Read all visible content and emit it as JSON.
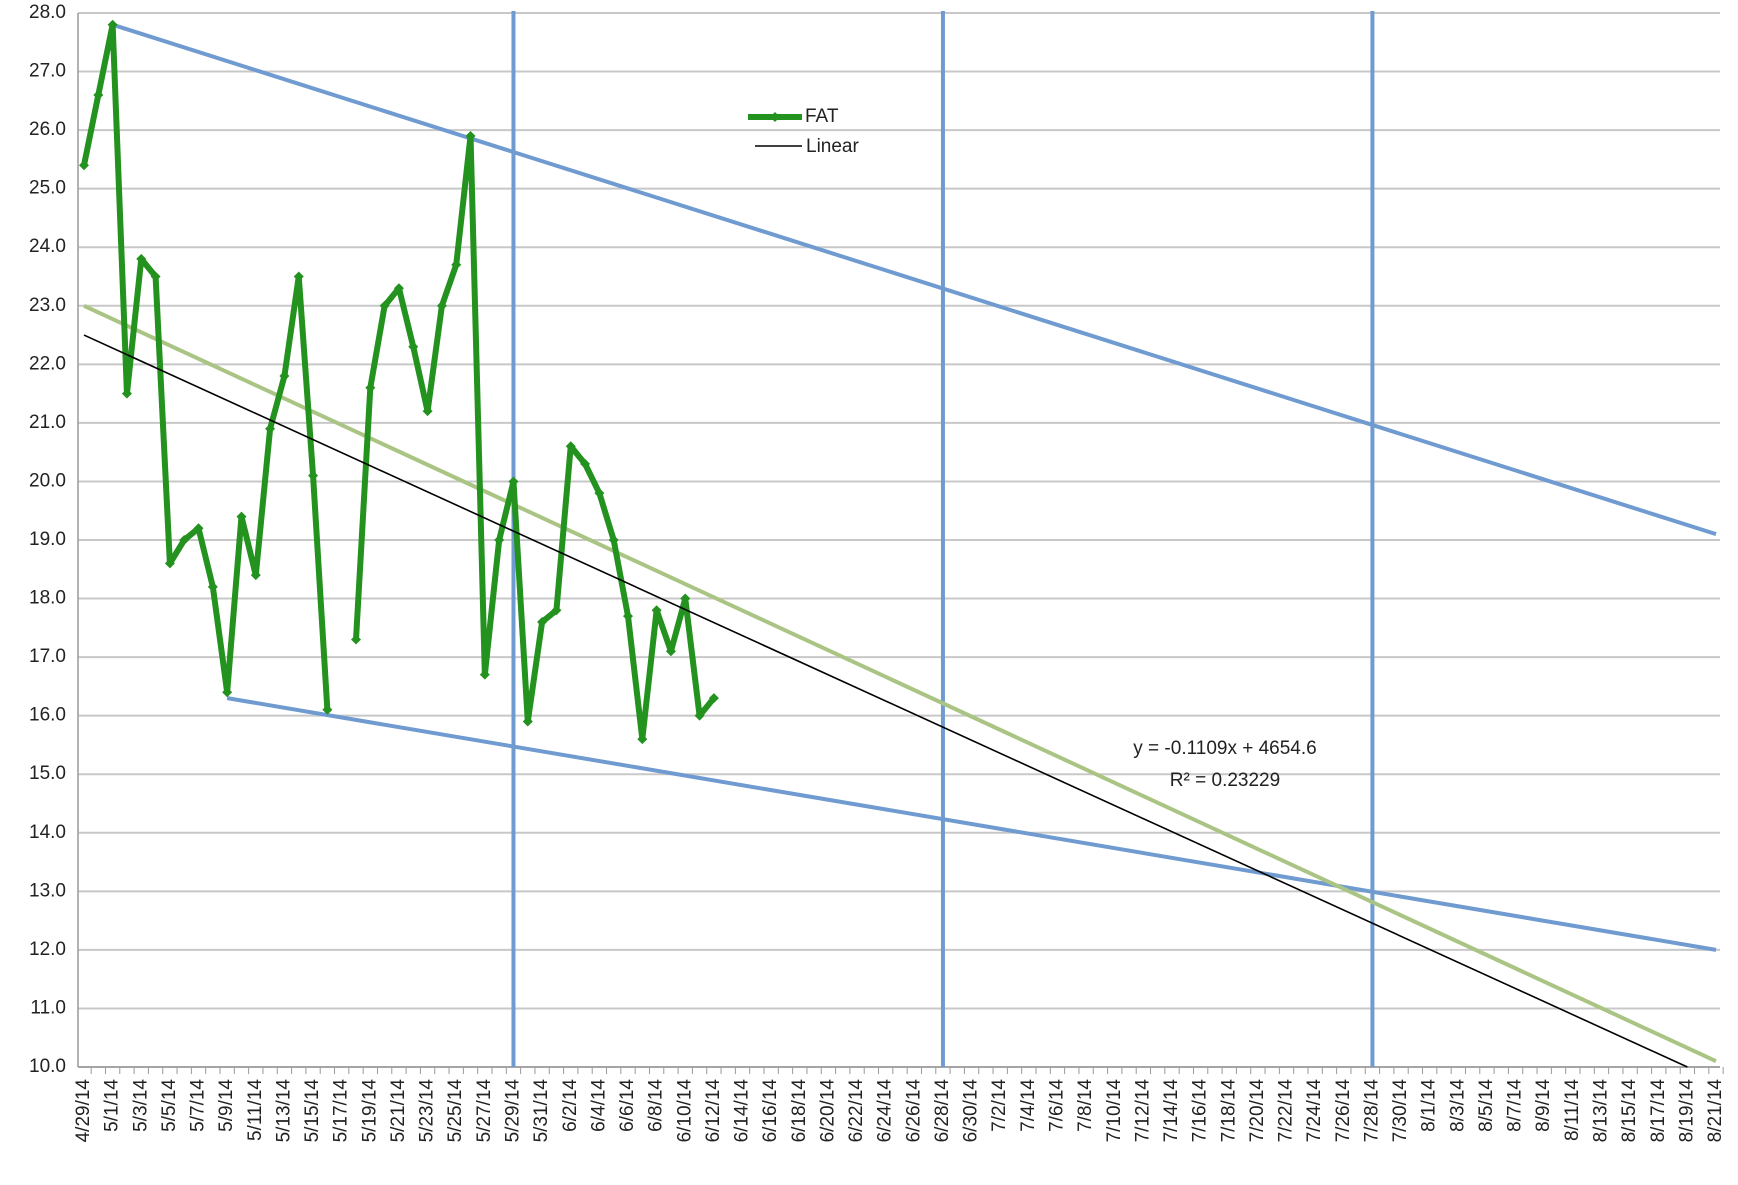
{
  "chart_data": {
    "type": "line",
    "categories": [
      "4/29/14",
      null,
      "5/1/14",
      null,
      "5/3/14",
      null,
      "5/5/14",
      null,
      "5/7/14",
      null,
      "5/9/14",
      null,
      "5/11/14",
      null,
      "5/13/14",
      null,
      "5/15/14",
      null,
      "5/17/14",
      null,
      "5/19/14",
      null,
      "5/21/14",
      null,
      "5/23/14",
      null,
      "5/25/14",
      null,
      "5/27/14",
      null,
      "5/29/14",
      null,
      "5/31/14",
      null,
      "6/2/14",
      null,
      "6/4/14",
      null,
      "6/6/14",
      null,
      "6/8/14",
      null,
      "6/10/14",
      null,
      "6/12/14",
      null,
      "6/14/14",
      null,
      "6/16/14",
      null,
      "6/18/14",
      null,
      "6/20/14",
      null,
      "6/22/14",
      null,
      "6/24/14",
      null,
      "6/26/14",
      null,
      "6/28/14",
      null,
      "6/30/14",
      null,
      "7/2/14",
      null,
      "7/4/14",
      null,
      "7/6/14",
      null,
      "7/8/14",
      null,
      "7/10/14",
      null,
      "7/12/14",
      null,
      "7/14/14",
      null,
      "7/16/14",
      null,
      "7/18/14",
      null,
      "7/20/14",
      null,
      "7/22/14",
      null,
      "7/24/14",
      null,
      "7/26/14",
      null,
      "7/28/14",
      null,
      "7/30/14",
      null,
      "8/1/14",
      null,
      "8/3/14",
      null,
      "8/5/14",
      null,
      "8/7/14",
      null,
      "8/9/14",
      null,
      "8/11/14",
      null,
      "8/13/14",
      null,
      "8/15/14",
      null,
      "8/17/14",
      null,
      "8/19/14",
      null,
      "8/21/14"
    ],
    "series": [
      {
        "name": "FAT",
        "color": "#23921e",
        "values": [
          25.4,
          26.6,
          27.8,
          21.5,
          23.8,
          23.5,
          18.6,
          19.0,
          19.2,
          18.2,
          16.4,
          19.4,
          18.4,
          20.9,
          21.8,
          23.5,
          20.1,
          16.1,
          null,
          17.3,
          21.6,
          23.0,
          23.3,
          22.3,
          21.2,
          23.0,
          23.7,
          25.9,
          16.7,
          19.0,
          20.0,
          15.9,
          17.6,
          17.8,
          20.6,
          20.3,
          19.8,
          19.0,
          17.7,
          15.6,
          17.8,
          17.1,
          18.0,
          16.0,
          16.3,
          null,
          null,
          null,
          null,
          null,
          null,
          null,
          null,
          null,
          null,
          null,
          null,
          null,
          null,
          null,
          null,
          null,
          null,
          null,
          null,
          null,
          null,
          null,
          null,
          null,
          null,
          null,
          null,
          null,
          null,
          null,
          null,
          null,
          null,
          null,
          null,
          null,
          null,
          null,
          null,
          null,
          null,
          null,
          null,
          null,
          null,
          null,
          null,
          null,
          null,
          null,
          null,
          null,
          null,
          null,
          null,
          null,
          null,
          null,
          null,
          null,
          null,
          null,
          null,
          null,
          null,
          null,
          null,
          null,
          null
        ]
      }
    ],
    "trendline": {
      "name": "Linear",
      "color": "#000000",
      "x": [
        "4/29/14",
        "8/19/14"
      ],
      "values": [
        22.5,
        10.0
      ],
      "equation": "y = -0.1109x + 4654.6",
      "r_squared": "R² = 0.23229"
    },
    "lines": [
      {
        "color": "#6f9bd0",
        "x": [
          "5/1/14",
          "8/21/14"
        ],
        "values": [
          27.8,
          19.1
        ]
      },
      {
        "color": "#6f9bd0",
        "x": [
          "5/9/14",
          "8/21/14"
        ],
        "values": [
          16.3,
          12.0
        ]
      },
      {
        "color": "#aac484",
        "x": [
          "4/29/14",
          "8/21/14"
        ],
        "values": [
          23.0,
          10.1
        ]
      }
    ],
    "vlines": {
      "color": "#6f9bd0",
      "x": [
        "5/29/14",
        "6/28/14",
        "7/28/14"
      ]
    },
    "ylim": [
      10,
      28
    ],
    "yticks": [
      {
        "value": 10,
        "label": "10.0"
      },
      {
        "value": 11,
        "label": "11.0"
      },
      {
        "value": 12,
        "label": "12.0"
      },
      {
        "value": 13,
        "label": "13.0"
      },
      {
        "value": 14,
        "label": "14.0"
      },
      {
        "value": 15,
        "label": "15.0"
      },
      {
        "value": 16,
        "label": "16.0"
      },
      {
        "value": 17,
        "label": "17.0"
      },
      {
        "value": 18,
        "label": "18.0"
      },
      {
        "value": 19,
        "label": "19.0"
      },
      {
        "value": 20,
        "label": "20.0"
      },
      {
        "value": 21,
        "label": "21.0"
      },
      {
        "value": 22,
        "label": "22.0"
      },
      {
        "value": 23,
        "label": "23.0"
      },
      {
        "value": 24,
        "label": "24.0"
      },
      {
        "value": 25,
        "label": "25.0"
      },
      {
        "value": 26,
        "label": "26.0"
      },
      {
        "value": 27,
        "label": "27.0"
      },
      {
        "value": 28,
        "label": "28.0"
      }
    ],
    "grid": true
  }
}
